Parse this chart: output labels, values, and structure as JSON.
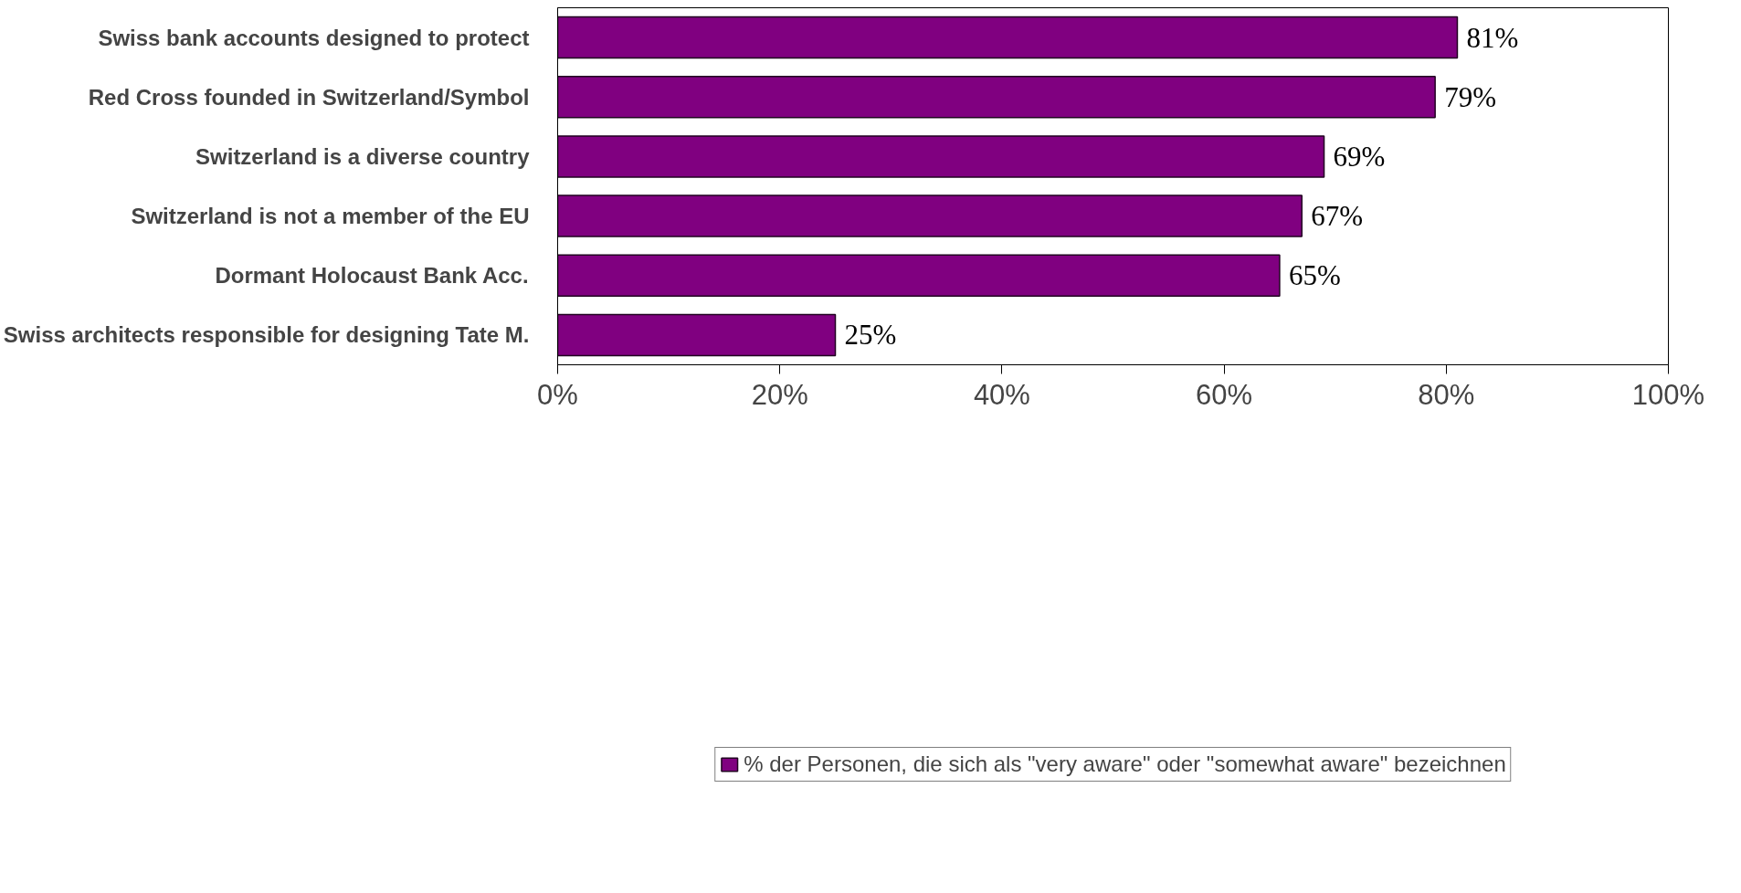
{
  "chart_data": {
    "type": "bar",
    "orientation": "horizontal",
    "categories": [
      "Swiss bank accounts designed to protect",
      "Red Cross founded in Switzerland/Symbol",
      "Switzerland is a diverse country",
      "Switzerland is not a member of the EU",
      "Dormant Holocaust Bank Acc.",
      "Swiss architects responsible for designing Tate M."
    ],
    "series": [
      {
        "name": "% der Personen, die sich als \"very aware\" oder \"somewhat aware\" bezeichnen",
        "color": "#800080",
        "values": [
          81,
          79,
          69,
          67,
          65,
          25
        ]
      }
    ],
    "value_labels": [
      "81%",
      "79%",
      "69%",
      "67%",
      "65%",
      "25%"
    ],
    "xlim": [
      0,
      100
    ],
    "xticks": [
      {
        "value": 0,
        "label": "0%"
      },
      {
        "value": 20,
        "label": "20%"
      },
      {
        "value": 40,
        "label": "40%"
      },
      {
        "value": 60,
        "label": "60%"
      },
      {
        "value": 80,
        "label": "80%"
      },
      {
        "value": 100,
        "label": "100%"
      }
    ],
    "grid": false,
    "legend": "bottom"
  }
}
